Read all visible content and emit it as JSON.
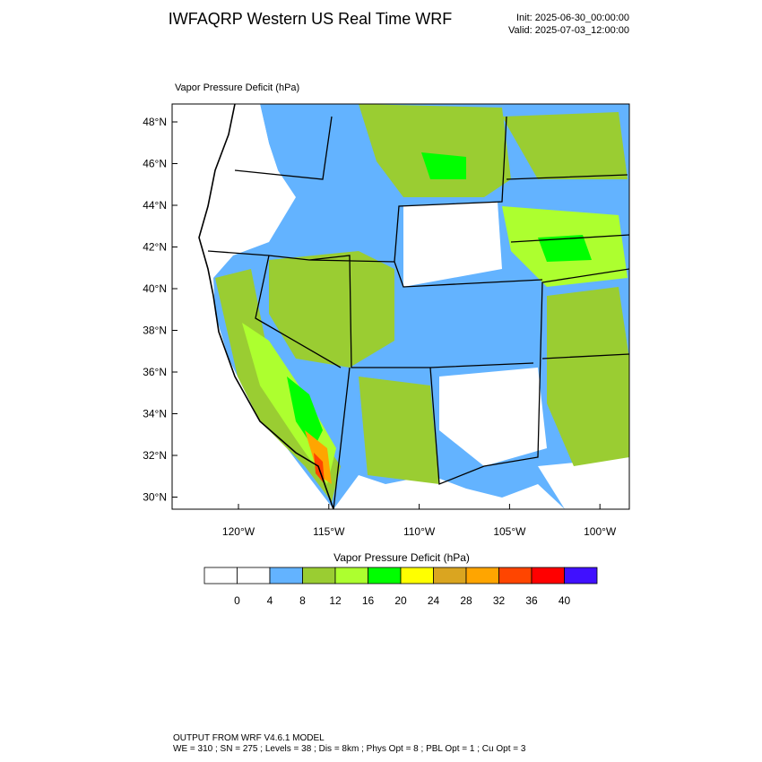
{
  "header": {
    "title": "IWFAQRP Western US Real Time WRF",
    "init": "Init: 2025-06-30_00:00:00",
    "valid": "Valid: 2025-07-03_12:00:00"
  },
  "map": {
    "field_label": "Vapor Pressure Deficit   (hPa)",
    "lat_labels": [
      "48°N",
      "46°N",
      "44°N",
      "42°N",
      "40°N",
      "38°N",
      "36°N",
      "34°N",
      "32°N",
      "30°N"
    ],
    "lon_labels": [
      "120°W",
      "115°W",
      "110°W",
      "105°W",
      "100°W"
    ]
  },
  "colorbar": {
    "title": "Vapor Pressure Deficit  (hPa)",
    "levels": [
      0,
      4,
      8,
      12,
      16,
      20,
      24,
      28,
      32,
      36,
      40
    ],
    "colors": [
      "#ffffff",
      "#ffffff",
      "#63b3ff",
      "#9acd32",
      "#adff2f",
      "#00ff00",
      "#ffff00",
      "#daa520",
      "#ffa500",
      "#ff4500",
      "#ff0000",
      "#4010ff"
    ]
  },
  "footer": {
    "line1": "OUTPUT FROM WRF V4.6.1 MODEL",
    "line2": "WE = 310 ; SN = 275 ; Levels = 38 ; Dis = 8km ; Phys Opt = 8 ; PBL Opt = 1 ; Cu Opt = 3"
  }
}
